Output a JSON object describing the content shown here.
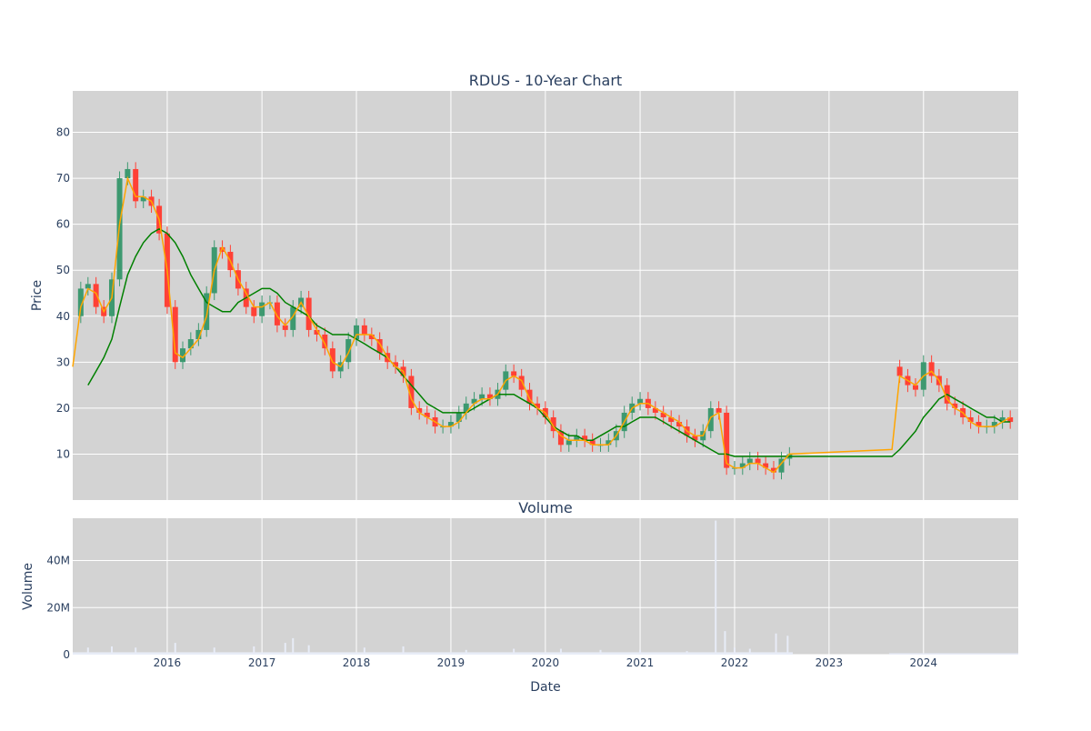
{
  "chart_data": [
    {
      "type": "candlestick",
      "title": "RDUS - 10-Year Chart",
      "xlabel": "",
      "ylabel": "Price",
      "ylim": [
        0,
        89
      ],
      "y_ticks": [
        10,
        20,
        30,
        40,
        50,
        60,
        70,
        80
      ],
      "x_ticks": [
        "2016",
        "2017",
        "2018",
        "2019",
        "2020",
        "2021",
        "2022",
        "2023",
        "2024"
      ],
      "xlim": [
        "2015-01-01",
        "2025-01-01"
      ],
      "grid": true,
      "background": "#d3d3d3",
      "colors": {
        "increasing": "#3d9970",
        "decreasing": "#ff4136",
        "ma_short": "#ffa500",
        "ma_long": "#008000"
      },
      "price_series": {
        "name": "RDUS",
        "x": [
          "2015-01-01",
          "2015-02-01",
          "2015-03-01",
          "2015-04-01",
          "2015-05-01",
          "2015-06-01",
          "2015-07-01",
          "2015-08-01",
          "2015-09-01",
          "2015-10-01",
          "2015-11-01",
          "2015-12-01",
          "2016-01-01",
          "2016-02-01",
          "2016-03-01",
          "2016-04-01",
          "2016-05-01",
          "2016-06-01",
          "2016-07-01",
          "2016-08-01",
          "2016-09-01",
          "2016-10-01",
          "2016-11-01",
          "2016-12-01",
          "2017-01-01",
          "2017-02-01",
          "2017-03-01",
          "2017-04-01",
          "2017-05-01",
          "2017-06-01",
          "2017-07-01",
          "2017-08-01",
          "2017-09-01",
          "2017-10-01",
          "2017-11-01",
          "2017-12-01",
          "2018-01-01",
          "2018-02-01",
          "2018-03-01",
          "2018-04-01",
          "2018-05-01",
          "2018-06-01",
          "2018-07-01",
          "2018-08-01",
          "2018-09-01",
          "2018-10-01",
          "2018-11-01",
          "2018-12-01",
          "2019-01-01",
          "2019-02-01",
          "2019-03-01",
          "2019-04-01",
          "2019-05-01",
          "2019-06-01",
          "2019-07-01",
          "2019-08-01",
          "2019-09-01",
          "2019-10-01",
          "2019-11-01",
          "2019-12-01",
          "2020-01-01",
          "2020-02-01",
          "2020-03-01",
          "2020-04-01",
          "2020-05-01",
          "2020-06-01",
          "2020-07-01",
          "2020-08-01",
          "2020-09-01",
          "2020-10-01",
          "2020-11-01",
          "2020-12-01",
          "2021-01-01",
          "2021-02-01",
          "2021-03-01",
          "2021-04-01",
          "2021-05-01",
          "2021-06-01",
          "2021-07-01",
          "2021-08-01",
          "2021-09-01",
          "2021-10-01",
          "2021-11-01",
          "2021-12-01",
          "2022-01-01",
          "2022-02-01",
          "2022-03-01",
          "2022-04-01",
          "2022-05-01",
          "2022-06-01",
          "2022-07-01",
          "2022-08-01",
          "2023-09-01",
          "2023-10-01",
          "2023-11-01",
          "2023-12-01",
          "2024-01-01",
          "2024-02-01",
          "2024-03-01",
          "2024-04-01",
          "2024-05-01",
          "2024-06-01",
          "2024-07-01",
          "2024-08-01",
          "2024-09-01",
          "2024-10-01",
          "2024-11-01",
          "2024-12-01"
        ],
        "close": [
          40,
          46,
          47,
          42,
          40,
          48,
          70,
          72,
          65,
          66,
          64,
          58,
          42,
          30,
          33,
          35,
          37,
          45,
          55,
          54,
          50,
          46,
          42,
          40,
          43,
          43,
          38,
          37,
          42,
          44,
          37,
          36,
          33,
          28,
          30,
          35,
          38,
          36,
          35,
          32,
          30,
          29,
          27,
          20,
          19,
          18,
          16,
          16,
          17,
          19,
          21,
          22,
          23,
          22,
          24,
          28,
          27,
          24,
          21,
          20,
          18,
          15,
          12,
          13,
          14,
          13,
          12,
          12,
          13,
          15,
          19,
          21,
          22,
          20,
          19,
          18,
          17,
          16,
          14,
          13,
          15,
          20,
          19,
          7,
          7,
          8,
          9,
          8,
          7,
          6,
          9,
          10,
          29,
          27,
          25,
          24,
          30,
          27,
          25,
          21,
          20,
          18,
          17,
          16,
          16,
          17,
          18,
          17
        ],
        "ma_short": [
          29,
          42,
          46,
          45,
          41,
          44,
          60,
          70,
          66,
          66,
          65,
          61,
          50,
          32,
          31,
          33,
          35,
          40,
          50,
          55,
          52,
          48,
          45,
          42,
          42,
          43,
          40,
          38,
          40,
          43,
          40,
          37,
          34,
          30,
          29,
          32,
          36,
          36,
          36,
          34,
          31,
          29,
          28,
          22,
          19,
          18,
          17,
          16,
          16,
          17,
          19,
          21,
          22,
          22,
          23,
          26,
          27,
          26,
          22,
          20,
          19,
          16,
          14,
          13,
          13,
          13,
          12,
          12,
          12,
          14,
          17,
          20,
          21,
          21,
          20,
          19,
          18,
          17,
          15,
          14,
          14,
          18,
          19,
          8,
          7,
          7,
          8,
          8,
          7,
          6,
          8,
          10,
          11,
          27,
          26,
          25,
          27,
          28,
          26,
          22,
          20,
          19,
          17,
          16,
          16,
          16,
          17,
          18
        ],
        "ma_long": [
          null,
          null,
          25,
          28,
          31,
          35,
          42,
          49,
          53,
          56,
          58,
          59,
          58,
          56,
          53,
          49,
          46,
          43,
          42,
          41,
          41,
          43,
          44,
          45,
          46,
          46,
          45,
          43,
          42,
          41,
          40,
          38,
          37,
          36,
          36,
          36,
          35,
          34,
          33,
          32,
          31,
          29,
          27,
          25,
          23,
          21,
          20,
          19,
          19,
          19,
          19,
          20,
          21,
          22,
          23,
          23,
          23,
          22,
          21,
          20,
          18,
          16,
          15,
          14,
          14,
          13,
          13,
          14,
          15,
          16,
          16,
          17,
          18,
          18,
          18,
          17,
          16,
          15,
          14,
          13,
          12,
          11,
          10,
          10,
          9.5,
          9.5,
          9.5,
          9.5,
          9.5,
          9.5,
          9.5,
          9.5,
          9.5,
          11,
          13,
          15,
          18,
          20,
          22,
          23,
          22,
          21,
          20,
          19,
          18,
          18,
          17,
          17
        ]
      }
    },
    {
      "type": "bar",
      "title": "Volume",
      "xlabel": "Date",
      "ylabel": "Volume",
      "ylim": [
        0,
        58000000
      ],
      "y_ticks": [
        {
          "value": 0,
          "label": "0"
        },
        {
          "value": 20000000,
          "label": "20M"
        },
        {
          "value": 40000000,
          "label": "40M"
        }
      ],
      "x_ticks": [
        "2016",
        "2017",
        "2018",
        "2019",
        "2020",
        "2021",
        "2022",
        "2023",
        "2024"
      ],
      "grid": true,
      "background": "#d3d3d3",
      "bar_color": "#e8ecf7",
      "series": [
        {
          "x": [
            "2015-03-01",
            "2015-06-01",
            "2015-09-01",
            "2016-02-01",
            "2016-07-01",
            "2016-12-01",
            "2017-04-01",
            "2017-05-01",
            "2017-07-01",
            "2018-02-01",
            "2018-07-01",
            "2019-03-01",
            "2019-09-01",
            "2020-03-01",
            "2020-08-01",
            "2021-01-01",
            "2021-07-01",
            "2021-10-20",
            "2021-11-25",
            "2022-01-01",
            "2022-03-01",
            "2022-06-10",
            "2022-07-25"
          ],
          "values": [
            3000000,
            3500000,
            3000000,
            5000000,
            3000000,
            3500000,
            5000000,
            7000000,
            4000000,
            3000000,
            3500000,
            2000000,
            2500000,
            2500000,
            2000000,
            2000000,
            1500000,
            57000000,
            10000000,
            3000000,
            2500000,
            9000000,
            8000000
          ]
        }
      ]
    }
  ]
}
